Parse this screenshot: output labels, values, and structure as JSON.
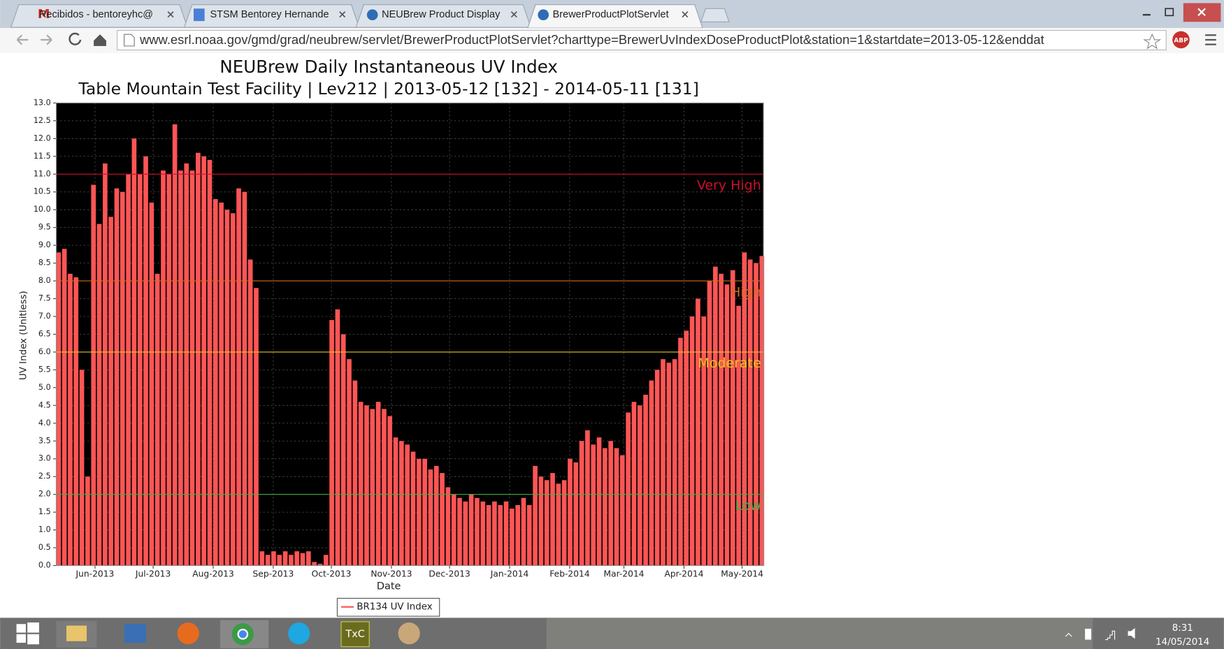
{
  "browser": {
    "tabs": [
      "Recibidos - bentoreyhc@",
      "STSM Bentorey Hernande",
      "NEUBrew Product Display",
      "BrewerProductPlotServlet"
    ],
    "url": "www.esrl.noaa.gov/gmd/grad/neubrew/servlet/BrewerProductPlotServlet?charttype=BrewerUvIndexDoseProductPlot&station=1&startdate=2013-05-12&enddat",
    "extension": "ABP"
  },
  "taskbar": {
    "app_label": "TxC",
    "time": "8:31",
    "date": "14/05/2014"
  },
  "chart_data": {
    "type": "bar",
    "title": "NEUBrew Daily Instantaneous UV Index",
    "subtitle": "Table Mountain Test Facility | Lev212 | 2013-05-12 [132] - 2014-05-11 [131]",
    "x_label": "Date",
    "y_label": "UV Index (Unitless)",
    "x": [
      0,
      3,
      6,
      9,
      12,
      15,
      18,
      21,
      24,
      27,
      30,
      33,
      36,
      39,
      42,
      45,
      48,
      51,
      54,
      57,
      60,
      63,
      66,
      69,
      72,
      75,
      78,
      81,
      84,
      87,
      90,
      93,
      96,
      99,
      102,
      105,
      108,
      111,
      114,
      117,
      120,
      123,
      126,
      129,
      132,
      135,
      138,
      141,
      144,
      147,
      150,
      153,
      156,
      159,
      162,
      165,
      168,
      171,
      174,
      177,
      180,
      183,
      186,
      189,
      192,
      195,
      198,
      201,
      204,
      207,
      210,
      213,
      216,
      219,
      222,
      225,
      228,
      231,
      234,
      237,
      240,
      243,
      246,
      249,
      252,
      255,
      258,
      261,
      264,
      267,
      270,
      273,
      276,
      279,
      282,
      285,
      288,
      291,
      294,
      297,
      300,
      303,
      306,
      309,
      312,
      315,
      318,
      321,
      324,
      327,
      330,
      333,
      336,
      339,
      342,
      345,
      348,
      351,
      354,
      357,
      360,
      363
    ],
    "series": [
      {
        "name": "BR134 UV Index",
        "color": "#ff5555",
        "values": [
          8.8,
          8.9,
          8.2,
          8.1,
          5.5,
          2.5,
          10.7,
          9.6,
          11.3,
          9.8,
          10.6,
          10.5,
          11.0,
          12.0,
          11.0,
          11.5,
          10.2,
          8.2,
          11.1,
          11.0,
          12.4,
          11.1,
          11.3,
          11.1,
          11.6,
          11.5,
          11.4,
          10.3,
          10.2,
          10.0,
          9.9,
          10.6,
          10.5,
          8.6,
          7.8,
          0.4,
          0.3,
          0.4,
          0.3,
          0.4,
          0.3,
          0.4,
          0.35,
          0.4,
          0.1,
          0.05,
          0.3,
          6.9,
          7.2,
          6.5,
          5.8,
          5.2,
          4.6,
          4.5,
          4.4,
          4.6,
          4.4,
          4.2,
          3.6,
          3.5,
          3.4,
          3.2,
          3.0,
          3.0,
          2.7,
          2.8,
          2.6,
          2.2,
          2.0,
          1.9,
          1.8,
          2.0,
          1.9,
          1.8,
          1.7,
          1.8,
          1.7,
          1.8,
          1.6,
          1.7,
          1.9,
          1.7,
          2.8,
          2.5,
          2.4,
          2.6,
          2.3,
          2.4,
          3.0,
          2.9,
          3.5,
          3.8,
          3.4,
          3.6,
          3.3,
          3.5,
          3.3,
          3.1,
          4.3,
          4.6,
          4.5,
          4.8,
          5.2,
          5.5,
          5.8,
          5.7,
          5.8,
          6.4,
          6.6,
          7.0,
          7.5,
          7.0,
          8.0,
          8.4,
          8.2,
          7.9,
          8.3,
          7.3,
          8.8,
          8.6,
          8.5,
          8.7
        ]
      }
    ],
    "xlim": [
      0,
      365
    ],
    "xticks": [
      {
        "value": 20,
        "label": "Jun-2013"
      },
      {
        "value": 50,
        "label": "Jul-2013"
      },
      {
        "value": 81,
        "label": "Aug-2013"
      },
      {
        "value": 112,
        "label": "Sep-2013"
      },
      {
        "value": 142,
        "label": "Oct-2013"
      },
      {
        "value": 173,
        "label": "Nov-2013"
      },
      {
        "value": 203,
        "label": "Dec-2013"
      },
      {
        "value": 234,
        "label": "Jan-2014"
      },
      {
        "value": 265,
        "label": "Feb-2014"
      },
      {
        "value": 293,
        "label": "Mar-2014"
      },
      {
        "value": 324,
        "label": "Apr-2014"
      },
      {
        "value": 354,
        "label": "May-2014"
      }
    ],
    "ylim": [
      0,
      13
    ],
    "yticks": [
      {
        "value": 0,
        "label": "0.0"
      },
      0.5,
      {
        "value": 1,
        "label": "1.0"
      },
      1.5,
      {
        "value": 2,
        "label": "2.0"
      },
      2.5,
      {
        "value": 3,
        "label": "3.0"
      },
      3.5,
      {
        "value": 4,
        "label": "4.0"
      },
      4.5,
      {
        "value": 5,
        "label": "5.0"
      },
      5.5,
      {
        "value": 6,
        "label": "6.0"
      },
      6.5,
      {
        "value": 7,
        "label": "7.0"
      },
      7.5,
      {
        "value": 8,
        "label": "8.0"
      },
      8.5,
      {
        "value": 9,
        "label": "9.0"
      },
      9.5,
      {
        "value": 10,
        "label": "10.0"
      },
      10.5,
      {
        "value": 11,
        "label": "11.0"
      },
      11.5,
      {
        "value": 12,
        "label": "12.0"
      },
      12.5,
      {
        "value": 13,
        "label": "13.0"
      }
    ],
    "grid": true,
    "reference_lines": [
      {
        "value": 11,
        "label": "Very High",
        "color": "#c8102e"
      },
      {
        "value": 8,
        "label": "High",
        "color": "#d2691e"
      },
      {
        "value": 6,
        "label": "Moderate",
        "color": "#e6c619"
      },
      {
        "value": 2,
        "label": "Low",
        "color": "#3cb043"
      }
    ]
  }
}
